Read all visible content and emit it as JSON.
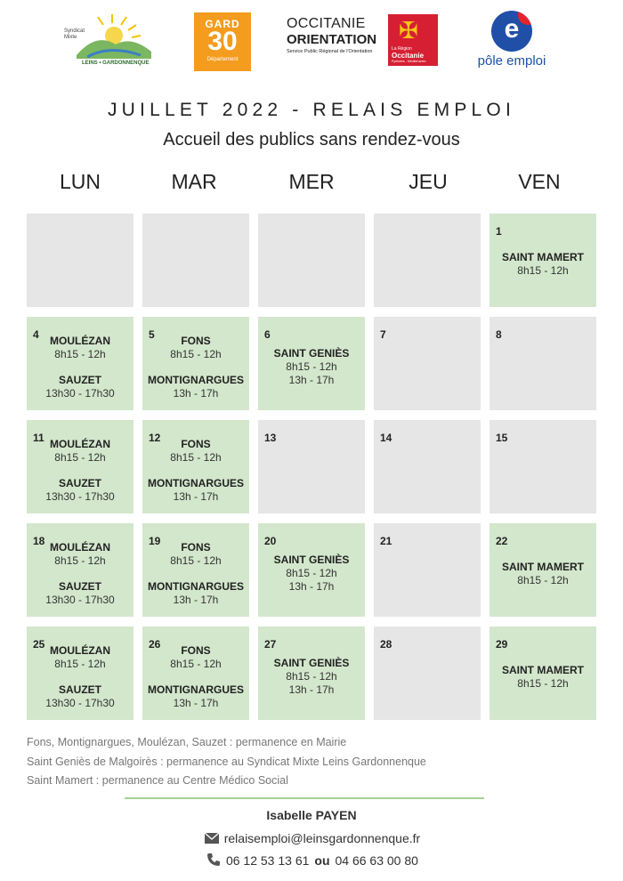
{
  "logos": {
    "leins": {
      "line1": "Syndicat",
      "line2": "Mixte",
      "line3": "LEINS • GARDONNENQUE"
    },
    "gard": {
      "top": "GARD",
      "number": "30",
      "bottom": "Département"
    },
    "occitanie": {
      "line1": "OCCITANIE",
      "line2": "ORIENTATION",
      "line3": "Service Public Régional de l'Orientation",
      "badge_small": "La Région",
      "badge_name": "Occitanie",
      "badge_sub": "Pyrénées - Méditerranée"
    },
    "pole_emploi": {
      "label": "pôle emploi"
    }
  },
  "title": "JUILLET 2022 - RELAIS EMPLOI",
  "subtitle": "Accueil des publics sans rendez-vous",
  "weekdays": [
    "LUN",
    "MAR",
    "MER",
    "JEU",
    "VEN"
  ],
  "weeks": [
    [
      {
        "day": "",
        "entries": []
      },
      {
        "day": "",
        "entries": []
      },
      {
        "day": "",
        "entries": []
      },
      {
        "day": "",
        "entries": []
      },
      {
        "day": "1",
        "entries": [
          {
            "place": "SAINT MAMERT",
            "times": [
              "8h15 - 12h"
            ]
          }
        ]
      }
    ],
    [
      {
        "day": "4",
        "entries": [
          {
            "place": "MOULÉZAN",
            "times": [
              "8h15 - 12h"
            ]
          },
          {
            "place": "SAUZET",
            "times": [
              "13h30 - 17h30"
            ]
          }
        ]
      },
      {
        "day": "5",
        "entries": [
          {
            "place": "FONS",
            "times": [
              "8h15 - 12h"
            ]
          },
          {
            "place": "MONTIGNARGUES",
            "times": [
              "13h - 17h"
            ]
          }
        ]
      },
      {
        "day": "6",
        "entries": [
          {
            "place": "SAINT GENIÈS",
            "times": [
              "8h15 - 12h",
              "13h - 17h"
            ]
          }
        ]
      },
      {
        "day": "7",
        "entries": []
      },
      {
        "day": "8",
        "entries": []
      }
    ],
    [
      {
        "day": "11",
        "entries": [
          {
            "place": "MOULÉZAN",
            "times": [
              "8h15 - 12h"
            ]
          },
          {
            "place": "SAUZET",
            "times": [
              "13h30 - 17h30"
            ]
          }
        ]
      },
      {
        "day": "12",
        "entries": [
          {
            "place": "FONS",
            "times": [
              "8h15 - 12h"
            ]
          },
          {
            "place": "MONTIGNARGUES",
            "times": [
              "13h - 17h"
            ]
          }
        ]
      },
      {
        "day": "13",
        "entries": []
      },
      {
        "day": "14",
        "entries": []
      },
      {
        "day": "15",
        "entries": []
      }
    ],
    [
      {
        "day": "18",
        "entries": [
          {
            "place": "MOULÉZAN",
            "times": [
              "8h15 - 12h"
            ]
          },
          {
            "place": "SAUZET",
            "times": [
              "13h30 - 17h30"
            ]
          }
        ]
      },
      {
        "day": "19",
        "entries": [
          {
            "place": "FONS",
            "times": [
              "8h15 - 12h"
            ]
          },
          {
            "place": "MONTIGNARGUES",
            "times": [
              "13h - 17h"
            ]
          }
        ]
      },
      {
        "day": "20",
        "entries": [
          {
            "place": "SAINT GENIÈS",
            "times": [
              "8h15 - 12h",
              "13h - 17h"
            ]
          }
        ]
      },
      {
        "day": "21",
        "entries": []
      },
      {
        "day": "22",
        "entries": [
          {
            "place": "SAINT MAMERT",
            "times": [
              "8h15 - 12h"
            ]
          }
        ]
      }
    ],
    [
      {
        "day": "25",
        "entries": [
          {
            "place": "MOULÉZAN",
            "times": [
              "8h15 - 12h"
            ]
          },
          {
            "place": "SAUZET",
            "times": [
              "13h30 - 17h30"
            ]
          }
        ]
      },
      {
        "day": "26",
        "entries": [
          {
            "place": "FONS",
            "times": [
              "8h15 - 12h"
            ]
          },
          {
            "place": "MONTIGNARGUES",
            "times": [
              "13h - 17h"
            ]
          }
        ]
      },
      {
        "day": "27",
        "entries": [
          {
            "place": "SAINT GENIÈS",
            "times": [
              "8h15 - 12h",
              "13h - 17h"
            ]
          }
        ]
      },
      {
        "day": "28",
        "entries": []
      },
      {
        "day": "29",
        "entries": [
          {
            "place": "SAINT MAMERT",
            "times": [
              "8h15 - 12h"
            ]
          }
        ]
      }
    ]
  ],
  "notes": [
    "Fons, Montignargues, Moulézan, Sauzet : permanence en Mairie",
    "Saint Geniès de Malgoirès : permanence au Syndicat Mixte Leins Gardonnenque",
    "Saint Mamert : permanence au Centre Médico Social"
  ],
  "contact": {
    "name": "Isabelle PAYEN",
    "email": "relaisemploi@leinsgardonnenque.fr",
    "phone1": "06 12 53 13 61",
    "or": "ou",
    "phone2": "04 66 63 00 80",
    "email_icon": "envelope-icon",
    "phone_icon": "phone-icon"
  },
  "colors": {
    "active_cell": "#d3e7cc",
    "inactive_cell": "#e6e6e6",
    "rule": "#a6cf96"
  }
}
